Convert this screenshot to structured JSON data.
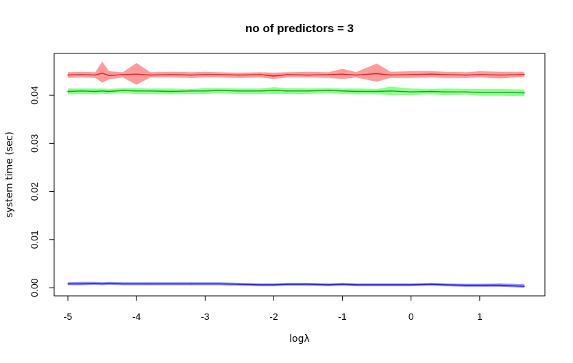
{
  "chart_data": {
    "type": "line",
    "title": "no of predictors =  3",
    "xlabel": "logλ",
    "ylabel": "system time (sec)",
    "xlim": [
      -5.2,
      1.95
    ],
    "ylim": [
      -0.0017,
      0.0487
    ],
    "x_ticks": [
      -5,
      -4,
      -3,
      -2,
      -1,
      0,
      1
    ],
    "x_tick_labels": [
      "-5",
      "-4",
      "-3",
      "-2",
      "-1",
      "0",
      "1"
    ],
    "y_ticks": [
      0,
      0.01,
      0.02,
      0.03,
      0.04
    ],
    "y_tick_labels": [
      "0.00",
      "0.01",
      "0.02",
      "0.03",
      "0.04"
    ],
    "x_range": [
      -5.0,
      1.65
    ],
    "bands": {
      "x": [
        -5.0,
        -4.8,
        -4.6,
        -4.5,
        -4.4,
        -4.2,
        -4.0,
        -3.8,
        -3.5,
        -3.2,
        -3.0,
        -2.8,
        -2.5,
        -2.2,
        -2.0,
        -1.8,
        -1.5,
        -1.2,
        -1.0,
        -0.8,
        -0.5,
        -0.3,
        0.0,
        0.3,
        0.5,
        0.8,
        1.0,
        1.3,
        1.65
      ],
      "note": ""
    },
    "series": [
      {
        "color": "#e31a1c",
        "band_color": "#ff9b9b",
        "mean": [
          0.0442,
          0.0443,
          0.0442,
          0.0446,
          0.0441,
          0.0443,
          0.0444,
          0.0442,
          0.0443,
          0.0442,
          0.0443,
          0.0443,
          0.0442,
          0.0443,
          0.044,
          0.0443,
          0.0442,
          0.0443,
          0.0444,
          0.0442,
          0.0445,
          0.0442,
          0.0443,
          0.0444,
          0.0443,
          0.0442,
          0.0443,
          0.0442,
          0.0443
        ],
        "upper": [
          0.0448,
          0.0449,
          0.0448,
          0.047,
          0.045,
          0.0448,
          0.0467,
          0.0448,
          0.0449,
          0.0448,
          0.0449,
          0.0448,
          0.0447,
          0.0448,
          0.0447,
          0.0448,
          0.0449,
          0.0448,
          0.0455,
          0.0448,
          0.0466,
          0.0449,
          0.045,
          0.045,
          0.0449,
          0.0448,
          0.045,
          0.0449,
          0.0449
        ],
        "lower": [
          0.0436,
          0.0437,
          0.0436,
          0.0426,
          0.0433,
          0.0437,
          0.0422,
          0.0437,
          0.0437,
          0.0436,
          0.0437,
          0.0437,
          0.0436,
          0.0437,
          0.0434,
          0.0437,
          0.0437,
          0.0436,
          0.0434,
          0.0437,
          0.0428,
          0.0436,
          0.0436,
          0.0437,
          0.0436,
          0.0436,
          0.0437,
          0.0435,
          0.0438
        ]
      },
      {
        "color": "#1a9c1a",
        "band_color": "#8cff8c",
        "mean": [
          0.0408,
          0.0409,
          0.0408,
          0.0409,
          0.0408,
          0.041,
          0.0409,
          0.0409,
          0.0408,
          0.0409,
          0.0409,
          0.041,
          0.0409,
          0.0409,
          0.041,
          0.0409,
          0.0409,
          0.041,
          0.0409,
          0.0408,
          0.0408,
          0.0409,
          0.0407,
          0.0408,
          0.0407,
          0.0407,
          0.0406,
          0.0406,
          0.0405
        ],
        "upper": [
          0.0414,
          0.0414,
          0.0414,
          0.0414,
          0.0413,
          0.0415,
          0.0415,
          0.0414,
          0.0414,
          0.0413,
          0.0415,
          0.0415,
          0.0414,
          0.0414,
          0.0417,
          0.0415,
          0.0414,
          0.0415,
          0.0414,
          0.0414,
          0.0413,
          0.0418,
          0.0414,
          0.0413,
          0.0414,
          0.0413,
          0.0413,
          0.0413,
          0.0412
        ],
        "lower": [
          0.0402,
          0.0403,
          0.0402,
          0.0403,
          0.0403,
          0.0404,
          0.0403,
          0.0403,
          0.0402,
          0.0403,
          0.0403,
          0.0404,
          0.0403,
          0.0403,
          0.0403,
          0.0403,
          0.0403,
          0.0404,
          0.0403,
          0.0402,
          0.0402,
          0.04,
          0.04,
          0.0402,
          0.04,
          0.0401,
          0.0399,
          0.0399,
          0.0398
        ]
      },
      {
        "color": "#1f1fcc",
        "band_color": "#8f8fff",
        "mean": [
          0.0008,
          0.0008,
          0.0009,
          0.0008,
          0.0009,
          0.0008,
          0.0008,
          0.0008,
          0.0008,
          0.0008,
          0.0008,
          0.0008,
          0.0007,
          0.0006,
          0.0006,
          0.0007,
          0.0007,
          0.0006,
          0.0007,
          0.0006,
          0.0006,
          0.0006,
          0.0006,
          0.0007,
          0.0006,
          0.0005,
          0.0005,
          0.0005,
          0.0003
        ],
        "upper": [
          0.0011,
          0.0012,
          0.0012,
          0.0011,
          0.0012,
          0.0011,
          0.0011,
          0.0011,
          0.0011,
          0.0011,
          0.0011,
          0.0011,
          0.001,
          0.0009,
          0.0009,
          0.001,
          0.001,
          0.0009,
          0.001,
          0.0009,
          0.0009,
          0.0009,
          0.0009,
          0.001,
          0.0009,
          0.0008,
          0.0008,
          0.0009,
          0.0007
        ],
        "lower": [
          0.0005,
          0.0005,
          0.0006,
          0.0005,
          0.0006,
          0.0005,
          0.0005,
          0.0005,
          0.0005,
          0.0005,
          0.0005,
          0.0005,
          0.0004,
          0.0003,
          0.0003,
          0.0004,
          0.0004,
          0.0003,
          0.0004,
          0.0003,
          0.0003,
          0.0003,
          0.0003,
          0.0004,
          0.0003,
          0.0002,
          0.0002,
          0.0002,
          0.0
        ]
      }
    ],
    "grid": false,
    "legend": "none"
  }
}
